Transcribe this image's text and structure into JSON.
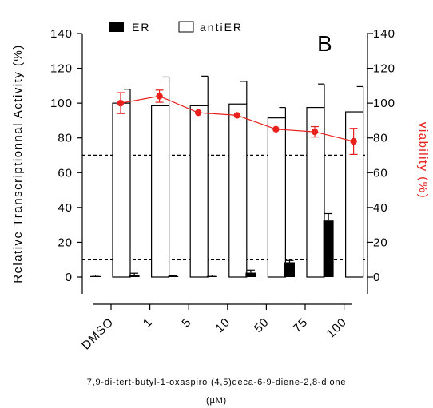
{
  "chart_data": {
    "type": "bar",
    "panel_label": "B",
    "categories": [
      "DMSO",
      "1",
      "5",
      "10",
      "50",
      "75",
      "100"
    ],
    "series": [
      {
        "name": "ER",
        "style": "filled",
        "color": "#000000",
        "values": [
          0.3,
          1.0,
          0.3,
          0.5,
          2.5,
          8.5,
          32.5
        ],
        "errors": [
          0.8,
          1.2,
          0.4,
          0.6,
          1.5,
          1.0,
          4.0
        ]
      },
      {
        "name": "antiER",
        "style": "open",
        "color": "#000000",
        "values": [
          100,
          98.5,
          98.5,
          99.5,
          91.5,
          97.5,
          95
        ],
        "errors": [
          8,
          16.5,
          17,
          13,
          6,
          13.5,
          14.5
        ]
      }
    ],
    "viability": {
      "color": "#e8211c",
      "values": [
        100,
        104,
        94.5,
        93,
        85,
        83.5,
        78
      ],
      "errors": [
        6,
        3.5,
        0,
        0,
        0,
        3,
        7.5
      ]
    },
    "reference_lines": [
      70,
      10
    ],
    "ylabel_left": "Relative Transcriptionnal Activity (%)",
    "ylabel_right": "viability (%)",
    "xlabel_line1": "7,9-di-tert-butyl-1-oxaspiro (4,5)deca-6-9-diene-2,8-dione",
    "xlabel_line2": "(µM)",
    "ylim": [
      0,
      140
    ],
    "yticks": [
      0,
      20,
      40,
      60,
      80,
      100,
      120,
      140
    ],
    "legend_position": "top-left",
    "colors": {
      "viability": "#e8211c",
      "bars": "#000000"
    }
  }
}
